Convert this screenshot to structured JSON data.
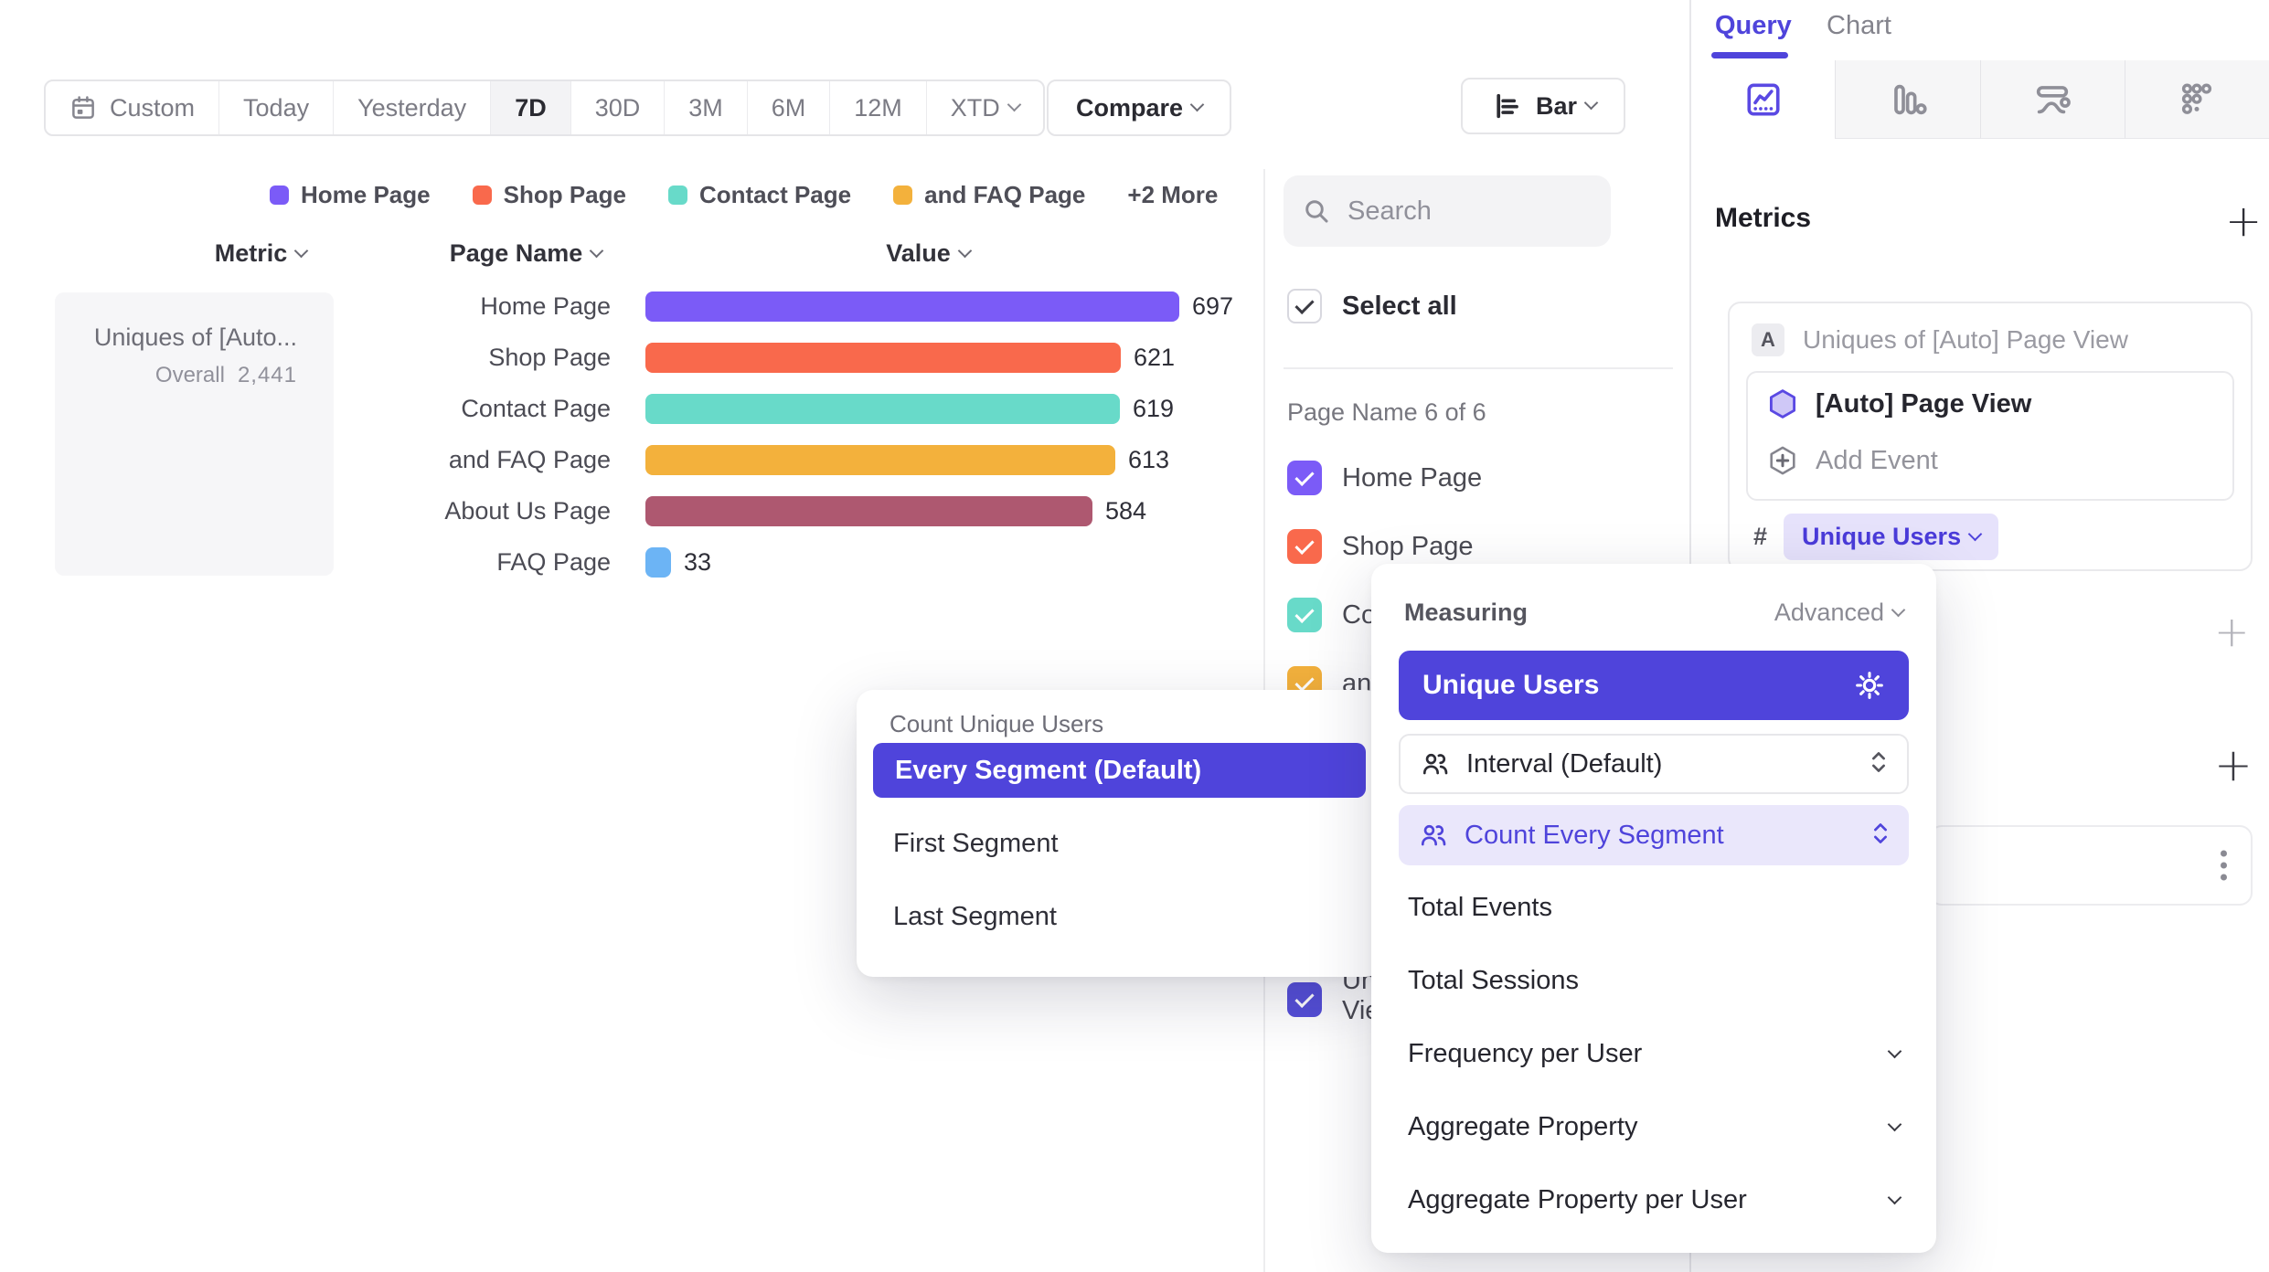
{
  "colors": {
    "accent_purple": "#4f44db",
    "chip_bg": "#e6e2fb",
    "light_purple_row_bg": "#eae7fb",
    "panel_border": "#e7e7ea"
  },
  "toolbar": {
    "date_ranges": [
      "Custom",
      "Today",
      "Yesterday",
      "7D",
      "30D",
      "3M",
      "6M",
      "12M",
      "XTD"
    ],
    "selected_range": "7D",
    "compare_label": "Compare",
    "chart_type_label": "Bar"
  },
  "legend": {
    "items": [
      {
        "label": "Home Page",
        "color": "#7b5bf7"
      },
      {
        "label": "Shop Page",
        "color": "#f9694c"
      },
      {
        "label": "Contact Page",
        "color": "#68dac9"
      },
      {
        "label": "and FAQ Page",
        "color": "#f3b13c"
      }
    ],
    "more_label": "+2 More"
  },
  "table": {
    "metric_header": "Metric",
    "page_name_header": "Page Name",
    "value_header": "Value",
    "metric_card": {
      "name": "Uniques of [Auto...",
      "overall_label": "Overall",
      "overall_value": "2,441"
    }
  },
  "chart_data": {
    "type": "bar",
    "orientation": "horizontal",
    "title": "",
    "xlabel": "Value",
    "ylabel": "Page Name",
    "categories": [
      "Home Page",
      "Shop Page",
      "Contact Page",
      "and FAQ Page",
      "About Us Page",
      "FAQ Page"
    ],
    "values": [
      697,
      621,
      619,
      613,
      584,
      33
    ],
    "value_labels": [
      "697",
      "621",
      "619",
      "613",
      "584",
      "33"
    ],
    "colors": [
      "#7b5bf7",
      "#f9694c",
      "#68dac9",
      "#f3b13c",
      "#ae5870",
      "#6cb4f5"
    ],
    "axis_max": 697,
    "grid": false,
    "legend_position": "top",
    "metric_name": "Uniques of [Auto] Page View",
    "overall_value": 2441
  },
  "segment_panel": {
    "search_placeholder": "Search",
    "select_all_label": "Select all",
    "group_label": "Page Name 6 of 6",
    "items": [
      {
        "label": "Home Page",
        "color": "#7b5bf7",
        "checked": true
      },
      {
        "label": "Shop Page",
        "color": "#f9694c",
        "checked": true
      },
      {
        "label": "Contact Page",
        "color": "#68dac9",
        "checked": true
      },
      {
        "label": "and FAQ Page",
        "color": "#f3b13c",
        "checked": true
      },
      {
        "label": "About Us Page",
        "color": "#ae5870",
        "checked": true
      },
      {
        "label": "FAQ Page",
        "color": "#6cb4f5",
        "checked": true
      }
    ],
    "extra_item": {
      "label": "Uniques of [Auto] Page View",
      "label_lines": [
        "Uniques of [Auto] Page",
        "View"
      ],
      "color": "#554fd8",
      "checked": true
    }
  },
  "query_panel": {
    "tabs": [
      {
        "label": "Query",
        "active": true
      },
      {
        "label": "Chart",
        "active": false
      }
    ],
    "report_icon_tabs": [
      "insights",
      "funnels",
      "flows",
      "retention"
    ],
    "metrics_heading": "Metrics",
    "metric_group": {
      "badge": "A",
      "name": "Uniques of [Auto] Page View",
      "event": "[Auto] Page View",
      "add_event_label": "Add Event",
      "measurement_prefix": "#",
      "measurement_chip": "Unique Users"
    }
  },
  "icons": {
    "plus": "+"
  },
  "popovers": {
    "count_unique_users": {
      "title": "Count Unique Users",
      "selected": "Every Segment (Default)",
      "options": [
        "Every Segment (Default)",
        "First Segment",
        "Last Segment"
      ]
    },
    "measuring": {
      "title": "Measuring",
      "advanced_label": "Advanced",
      "selected_option": "Unique Users",
      "interval_row": "Interval (Default)",
      "segment_row": "Count Every Segment",
      "options": [
        "Total Events",
        "Total Sessions",
        "Frequency per User",
        "Aggregate Property",
        "Aggregate Property per User"
      ],
      "expandable_options": [
        "Frequency per User",
        "Aggregate Property",
        "Aggregate Property per User"
      ]
    }
  }
}
